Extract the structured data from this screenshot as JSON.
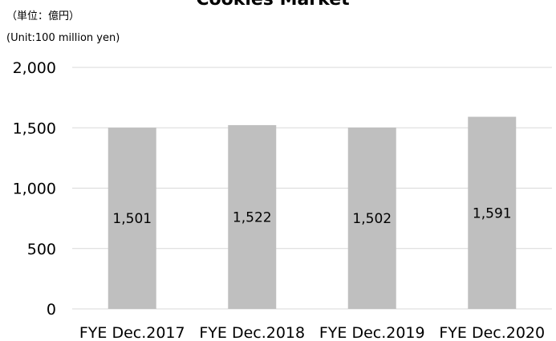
{
  "chart_data": {
    "type": "bar",
    "title": "Cookies Market",
    "unit_label_jp": "（単位：億円）",
    "unit_label_en": "(Unit:100 million yen)",
    "xlabel": "",
    "ylabel": "",
    "categories": [
      "FYE Dec.2017",
      "FYE Dec.2018",
      "FYE Dec.2019",
      "FYE Dec.2020"
    ],
    "values": [
      1501,
      1522,
      1502,
      1591
    ],
    "value_labels": [
      "1,501",
      "1,522",
      "1,502",
      "1,591"
    ],
    "ylim": [
      0,
      2000
    ],
    "yticks": [
      0,
      500,
      1000,
      1500,
      2000
    ],
    "ytick_labels": [
      "0",
      "500",
      "1,000",
      "1,500",
      "2,000"
    ],
    "grid": true,
    "legend": "none",
    "bar_color": "#bfbfbf",
    "grid_color": "#d9d9d9"
  }
}
